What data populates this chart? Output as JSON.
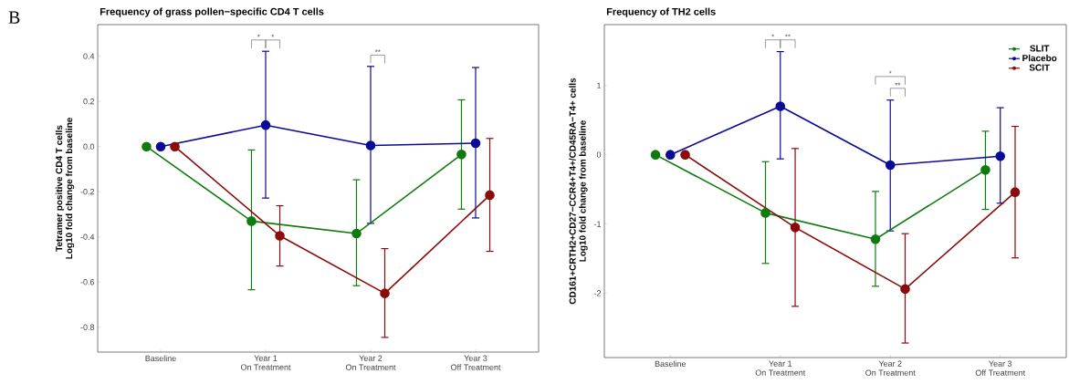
{
  "chart_data": [
    {
      "type": "line",
      "title": "Frequency of grass pollen−specific CD4 T cells",
      "ylabel": "Tetramer positive CD4 T cells\nLog10 fold change from baseline",
      "categories": [
        "Baseline",
        "Year 1\nOn Treatment",
        "Year 2\nOn Treatment",
        "Year 3\nOff Treatment"
      ],
      "series": [
        {
          "color": "#0f7a0f",
          "values": [
            0,
            -0.33,
            -0.385,
            -0.035
          ],
          "errors": [
            null,
            [
              -0.634,
              -0.015
            ],
            [
              -0.616,
              -0.147
            ],
            [
              -0.277,
              0.207
            ]
          ]
        },
        {
          "color": "#0a0a96",
          "values": [
            0,
            0.095,
            0.005,
            0.015
          ],
          "errors": [
            null,
            [
              -0.228,
              0.422
            ],
            [
              -0.34,
              0.355
            ],
            [
              -0.316,
              0.35
            ]
          ]
        },
        {
          "color": "#8b0a0a",
          "values": [
            0,
            -0.395,
            -0.65,
            -0.215
          ],
          "errors": [
            null,
            [
              -0.529,
              -0.262
            ],
            [
              -0.845,
              -0.452
            ],
            [
              -0.464,
              0.036
            ]
          ]
        }
      ],
      "ylim": [
        -0.91,
        0.54
      ],
      "yticks": [
        -0.8,
        -0.6,
        -0.4,
        -0.2,
        {
          "value": 0,
          "label": "0.0"
        },
        0.2,
        0.4
      ],
      "marker": "circle",
      "line_style": "solid",
      "annotations": [
        "B",
        "*",
        "*",
        "**"
      ]
    },
    {
      "type": "line",
      "title": "Frequency of TH2 cells",
      "ylabel": "CD161+CRTH2+CD27−CCR4+T4+/CD45RA−T4+ cells\nLog10 fold change from baseline",
      "categories": [
        "Baseline",
        "Year 1\nOn Treatment",
        "Year 2\nOn Treatment",
        "Year 3\nOff Treatment"
      ],
      "series": [
        {
          "name": "SLIT",
          "color": "#0f7a0f",
          "values": [
            0,
            -0.84,
            -1.22,
            -0.22
          ],
          "errors": [
            null,
            [
              -1.57,
              -0.1
            ],
            [
              -1.9,
              -0.53
            ],
            [
              -0.79,
              0.34
            ]
          ]
        },
        {
          "name": "Placebo",
          "color": "#0a0a96",
          "values": [
            0,
            0.7,
            -0.15,
            -0.02
          ],
          "errors": [
            null,
            [
              -0.06,
              1.49
            ],
            [
              -1.1,
              0.79
            ],
            [
              -0.7,
              0.68
            ]
          ]
        },
        {
          "name": "SCIT",
          "color": "#8b0a0a",
          "values": [
            0,
            -1.05,
            -1.94,
            -0.54
          ],
          "errors": [
            null,
            [
              -2.19,
              0.09
            ],
            [
              -2.72,
              -1.14
            ],
            [
              -1.49,
              0.41
            ]
          ]
        }
      ],
      "ylim": [
        -2.93,
        1.88
      ],
      "yticks": [
        -2,
        -1,
        0,
        1
      ],
      "marker": "circle",
      "line_style": "solid",
      "legend": "top right",
      "annotations": [
        "*",
        "**",
        "*",
        "**"
      ]
    }
  ]
}
